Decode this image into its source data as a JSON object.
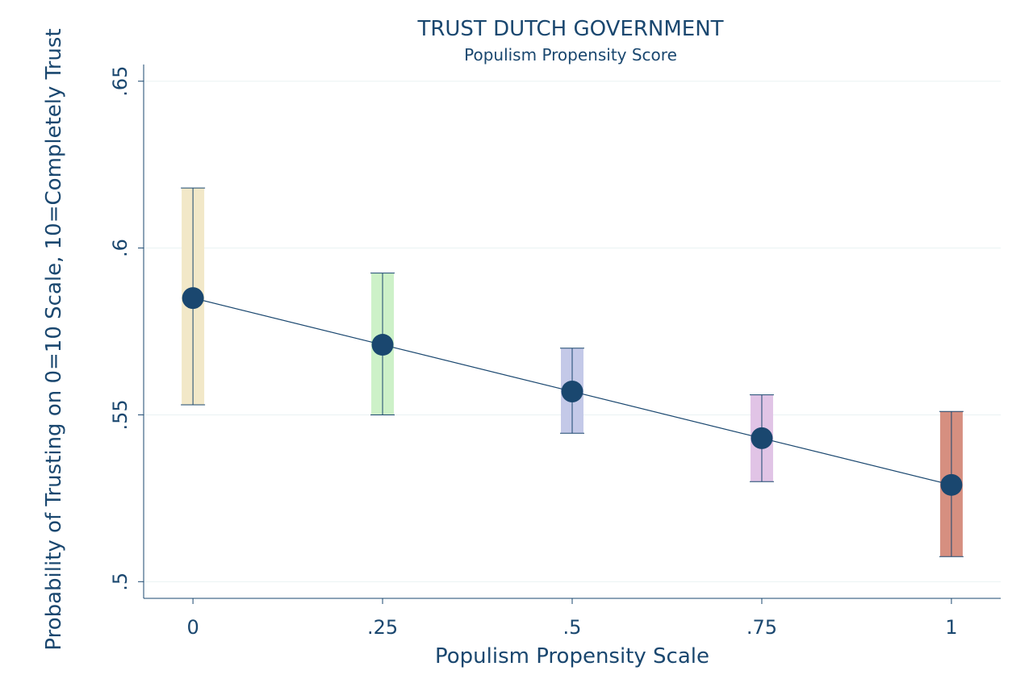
{
  "chart_data": {
    "type": "scatter",
    "title": "TRUST DUTCH GOVERNMENT",
    "subtitle": "Populism Propensity Score",
    "xlabel": "Populism Propensity Scale",
    "ylabel": "Probability of Trusting on 0=10 Scale, 10=Completely Trust",
    "xlim": [
      -0.065,
      1.065
    ],
    "ylim": [
      0.495,
      0.655
    ],
    "x_ticks": [
      0,
      0.25,
      0.5,
      0.75,
      1
    ],
    "x_tick_labels": [
      "0",
      ".25",
      ".5",
      ".75",
      "1"
    ],
    "y_ticks": [
      0.5,
      0.55,
      0.6,
      0.65
    ],
    "y_tick_labels": [
      ".5",
      ".55",
      ".6",
      ".65"
    ],
    "grid": true,
    "legend": "none",
    "series": [
      {
        "x": [
          0,
          0.25,
          0.5,
          0.75,
          1
        ],
        "y": [
          0.585,
          0.571,
          0.557,
          0.543,
          0.529
        ],
        "ci_low": [
          0.553,
          0.55,
          0.5445,
          0.53,
          0.5075
        ],
        "ci_high": [
          0.618,
          0.5925,
          0.57,
          0.556,
          0.551
        ]
      }
    ],
    "ci_colors": [
      "#f2e8c8",
      "#cdf1c8",
      "#c4c9e8",
      "#e1c4e6",
      "#d68f80"
    ],
    "point_color": "#1a476f"
  }
}
